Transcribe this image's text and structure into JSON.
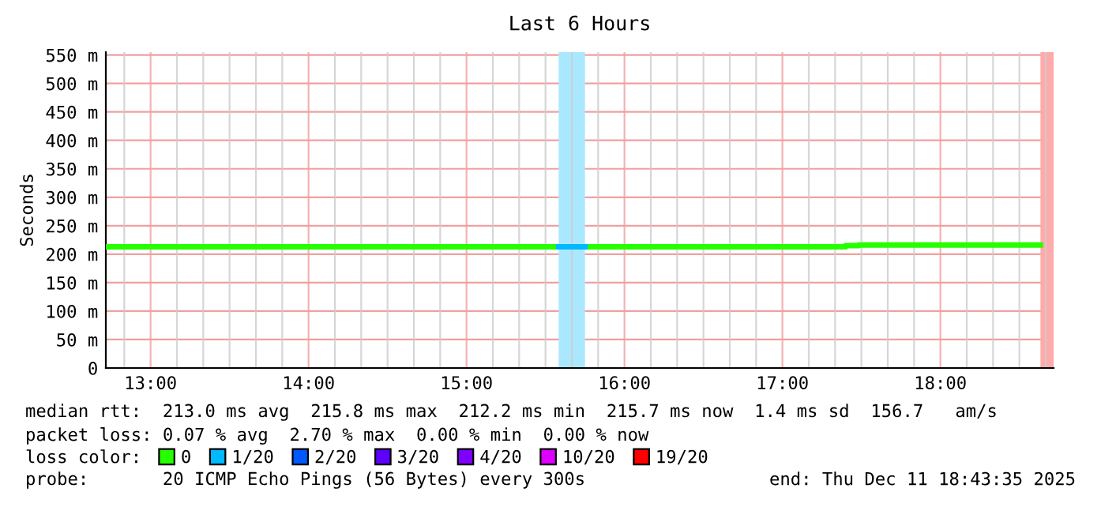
{
  "chart_data": {
    "type": "line",
    "title": "Last 6 Hours",
    "ylabel": "Seconds",
    "legend_title": "loss color:",
    "legend": "bottom left",
    "grid": true,
    "marker": "none",
    "line_style": "solid",
    "xlim": [
      "2025-12-11T12:43",
      "2025-12-11T18:43"
    ],
    "xticks": [
      {
        "value": "2025-12-11T12:50",
        "label": null
      },
      {
        "value": "2025-12-11T13:00",
        "label": "13:00"
      },
      {
        "value": "2025-12-11T13:10",
        "label": null
      },
      {
        "value": "2025-12-11T13:20",
        "label": null
      },
      {
        "value": "2025-12-11T13:30",
        "label": null
      },
      {
        "value": "2025-12-11T13:40",
        "label": null
      },
      {
        "value": "2025-12-11T13:50",
        "label": null
      },
      {
        "value": "2025-12-11T14:00",
        "label": "14:00"
      },
      {
        "value": "2025-12-11T14:10",
        "label": null
      },
      {
        "value": "2025-12-11T14:20",
        "label": null
      },
      {
        "value": "2025-12-11T14:30",
        "label": null
      },
      {
        "value": "2025-12-11T14:40",
        "label": null
      },
      {
        "value": "2025-12-11T14:50",
        "label": null
      },
      {
        "value": "2025-12-11T15:00",
        "label": "15:00"
      },
      {
        "value": "2025-12-11T15:10",
        "label": null
      },
      {
        "value": "2025-12-11T15:20",
        "label": null
      },
      {
        "value": "2025-12-11T15:30",
        "label": null
      },
      {
        "value": "2025-12-11T15:40",
        "label": null
      },
      {
        "value": "2025-12-11T15:50",
        "label": null
      },
      {
        "value": "2025-12-11T16:00",
        "label": "16:00"
      },
      {
        "value": "2025-12-11T16:10",
        "label": null
      },
      {
        "value": "2025-12-11T16:20",
        "label": null
      },
      {
        "value": "2025-12-11T16:30",
        "label": null
      },
      {
        "value": "2025-12-11T16:40",
        "label": null
      },
      {
        "value": "2025-12-11T16:50",
        "label": null
      },
      {
        "value": "2025-12-11T17:00",
        "label": "17:00"
      },
      {
        "value": "2025-12-11T17:10",
        "label": null
      },
      {
        "value": "2025-12-11T17:20",
        "label": null
      },
      {
        "value": "2025-12-11T17:30",
        "label": null
      },
      {
        "value": "2025-12-11T17:40",
        "label": null
      },
      {
        "value": "2025-12-11T17:50",
        "label": null
      },
      {
        "value": "2025-12-11T18:00",
        "label": "18:00"
      },
      {
        "value": "2025-12-11T18:10",
        "label": null
      },
      {
        "value": "2025-12-11T18:20",
        "label": null
      },
      {
        "value": "2025-12-11T18:30",
        "label": null
      },
      {
        "value": "2025-12-11T18:40",
        "label": null
      }
    ],
    "ylim": [
      0,
      555
    ],
    "yticks": [
      {
        "value": 0,
        "label": "0"
      },
      {
        "value": 50,
        "label": "50 m"
      },
      {
        "value": 100,
        "label": "100 m"
      },
      {
        "value": 150,
        "label": "150 m"
      },
      {
        "value": 200,
        "label": "200 m"
      },
      {
        "value": 250,
        "label": "250 m"
      },
      {
        "value": 300,
        "label": "300 m"
      },
      {
        "value": 350,
        "label": "350 m"
      },
      {
        "value": 400,
        "label": "400 m"
      },
      {
        "value": 450,
        "label": "450 m"
      },
      {
        "value": 500,
        "label": "500 m"
      },
      {
        "value": 550,
        "label": "550 m"
      }
    ],
    "bands": [
      {
        "axis": "x",
        "from": "2025-12-11T15:35",
        "to": "2025-12-11T15:45",
        "color": "#aae8ff"
      },
      {
        "axis": "x",
        "from": "2025-12-11T18:38",
        "to": "2025-12-11T18:43",
        "color": "#ffaaaa"
      }
    ],
    "series": [
      {
        "name": "0",
        "color": "#26ff00",
        "x": [
          "2025-12-11T12:43",
          "2025-12-11T15:35",
          "2025-12-11T15:40",
          "2025-12-11T15:45",
          "2025-12-11T17:24",
          "2025-12-11T17:24",
          "2025-12-11T17:29",
          "2025-12-11T17:29",
          "2025-12-11T18:38"
        ],
        "values": [
          213,
          213,
          null,
          213,
          213,
          215,
          215,
          216,
          216
        ]
      },
      {
        "name": "1/20",
        "color": "#00b8ff",
        "x": [
          "2025-12-11T15:35",
          "2025-12-11T15:45"
        ],
        "values": [
          213,
          213
        ]
      },
      {
        "name": "2/20",
        "color": "#0059ff"
      },
      {
        "name": "3/20",
        "color": "#5e00ff"
      },
      {
        "name": "4/20",
        "color": "#7e00ff"
      },
      {
        "name": "10/20",
        "color": "#dd00ff"
      },
      {
        "name": "19/20",
        "color": "#ff0000"
      }
    ],
    "annotations": [
      "median rtt:  213.0 ms avg  215.8 ms max  212.2 ms min  215.7 ms now  1.4 ms sd  156.7   am/s",
      "packet loss: 0.07 % avg  2.70 % max  0.00 % min  0.00 % now",
      "probe:       20 ICMP Echo Pings (56 Bytes) every 300s",
      "end: Thu Dec 11 18:43:35 2025"
    ]
  }
}
